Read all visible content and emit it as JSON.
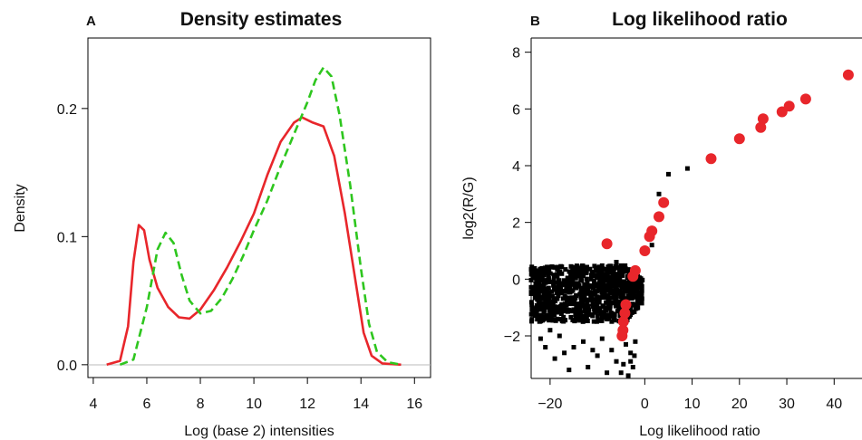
{
  "chart_data": [
    {
      "panel_label": "A",
      "type": "line",
      "title": "Density estimates",
      "xlabel": "Log (base 2) intensities",
      "ylabel": "Density",
      "xlim": [
        3.8,
        16.6
      ],
      "ylim": [
        -0.01,
        0.255
      ],
      "xticks": [
        "4",
        "6",
        "8",
        "10",
        "12",
        "14",
        "16"
      ],
      "yticks": [
        "0.0",
        "0.1",
        "0.2"
      ],
      "baseline": 0,
      "grid": false,
      "series": [
        {
          "color": "#e8262b",
          "dash": "solid",
          "points": [
            [
              4.5,
              0.0
            ],
            [
              5.0,
              0.003
            ],
            [
              5.3,
              0.03
            ],
            [
              5.5,
              0.08
            ],
            [
              5.7,
              0.109
            ],
            [
              5.9,
              0.105
            ],
            [
              6.1,
              0.082
            ],
            [
              6.4,
              0.06
            ],
            [
              6.8,
              0.045
            ],
            [
              7.2,
              0.037
            ],
            [
              7.6,
              0.036
            ],
            [
              8.0,
              0.043
            ],
            [
              8.5,
              0.058
            ],
            [
              9.0,
              0.076
            ],
            [
              9.5,
              0.096
            ],
            [
              10.0,
              0.118
            ],
            [
              10.5,
              0.148
            ],
            [
              11.0,
              0.174
            ],
            [
              11.5,
              0.189
            ],
            [
              11.8,
              0.193
            ],
            [
              12.2,
              0.189
            ],
            [
              12.6,
              0.186
            ],
            [
              13.0,
              0.163
            ],
            [
              13.4,
              0.118
            ],
            [
              13.8,
              0.065
            ],
            [
              14.1,
              0.025
            ],
            [
              14.4,
              0.007
            ],
            [
              14.8,
              0.001
            ],
            [
              15.5,
              0.0
            ]
          ]
        },
        {
          "color": "#2ec61e",
          "dash": "dashed",
          "points": [
            [
              5.0,
              0.0
            ],
            [
              5.5,
              0.004
            ],
            [
              6.0,
              0.045
            ],
            [
              6.4,
              0.09
            ],
            [
              6.7,
              0.103
            ],
            [
              7.0,
              0.095
            ],
            [
              7.3,
              0.07
            ],
            [
              7.6,
              0.05
            ],
            [
              8.0,
              0.04
            ],
            [
              8.4,
              0.042
            ],
            [
              8.8,
              0.052
            ],
            [
              9.2,
              0.067
            ],
            [
              9.6,
              0.085
            ],
            [
              10.0,
              0.105
            ],
            [
              10.5,
              0.128
            ],
            [
              11.0,
              0.155
            ],
            [
              11.5,
              0.18
            ],
            [
              12.0,
              0.205
            ],
            [
              12.3,
              0.222
            ],
            [
              12.6,
              0.232
            ],
            [
              12.9,
              0.225
            ],
            [
              13.2,
              0.195
            ],
            [
              13.6,
              0.14
            ],
            [
              14.0,
              0.075
            ],
            [
              14.3,
              0.032
            ],
            [
              14.6,
              0.01
            ],
            [
              15.0,
              0.002
            ],
            [
              15.5,
              0.0
            ]
          ]
        }
      ]
    },
    {
      "panel_label": "B",
      "type": "scatter",
      "title": "Log likelihood ratio",
      "xlabel": "Log likelihood ratio",
      "ylabel": "log2(R/G)",
      "xlim": [
        -24,
        46
      ],
      "ylim": [
        -3.5,
        8.5
      ],
      "xticks": [
        "−20",
        "0",
        "10",
        "20",
        "30",
        "40"
      ],
      "yticks": [
        "−2",
        "0",
        "2",
        "4",
        "6",
        "8"
      ],
      "grid": false,
      "black_points": {
        "color": "#000000",
        "cloud": {
          "x_range": [
            -24,
            -0.5
          ],
          "y_range": [
            -1.5,
            0.5
          ],
          "count": 900
        },
        "tail": [
          [
            -4,
            -2.3
          ],
          [
            -3,
            -2.9
          ],
          [
            -5,
            -3.3
          ],
          [
            -7,
            -2.5
          ],
          [
            -10,
            -2.7
          ],
          [
            -12,
            -3.1
          ],
          [
            -15,
            -2.4
          ],
          [
            -18,
            -2.0
          ],
          [
            -20,
            -1.8
          ],
          [
            -22,
            -2.1
          ],
          [
            -3.5,
            -3.4
          ],
          [
            -2.5,
            -3.1
          ],
          [
            -6,
            -2.9
          ],
          [
            -8,
            -3.3
          ],
          [
            -13,
            -2.2
          ],
          [
            -17,
            -2.6
          ],
          [
            -2.2,
            -2.7
          ],
          [
            -4.5,
            -3.0
          ],
          [
            -9,
            -2.1
          ],
          [
            -21,
            -2.4
          ],
          [
            -2,
            -2.2
          ],
          [
            -3,
            -2.6
          ],
          [
            -11,
            -2.5
          ],
          [
            -16,
            -3.2
          ],
          [
            -19,
            -2.8
          ]
        ],
        "outliers": [
          [
            1.5,
            1.2
          ],
          [
            3,
            3.0
          ],
          [
            5,
            3.7
          ],
          [
            9,
            3.9
          ],
          [
            -6,
            0.6
          ],
          [
            -20,
            -0.1
          ],
          [
            -23,
            0.3
          ]
        ]
      },
      "red_points": {
        "color": "#e8262b",
        "points": [
          [
            -8,
            1.25
          ],
          [
            -4,
            -0.9
          ],
          [
            -4.2,
            -1.2
          ],
          [
            -4.5,
            -1.5
          ],
          [
            -4.6,
            -1.8
          ],
          [
            -4.8,
            -2.0
          ],
          [
            -2.5,
            0.1
          ],
          [
            -2,
            0.3
          ],
          [
            0,
            1.0
          ],
          [
            1,
            1.5
          ],
          [
            1.5,
            1.7
          ],
          [
            3,
            2.2
          ],
          [
            4,
            2.7
          ],
          [
            14,
            4.25
          ],
          [
            20,
            4.95
          ],
          [
            24.5,
            5.35
          ],
          [
            25,
            5.65
          ],
          [
            29,
            5.9
          ],
          [
            30.5,
            6.1
          ],
          [
            34,
            6.35
          ],
          [
            43,
            7.2
          ]
        ]
      }
    }
  ]
}
